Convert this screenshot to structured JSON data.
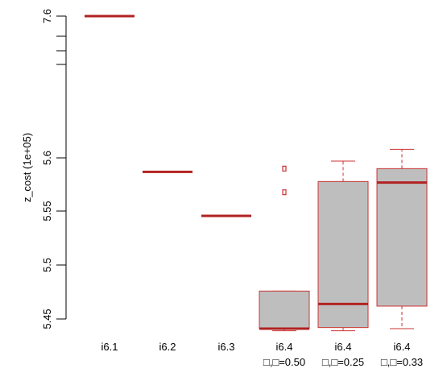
{
  "chart_data": {
    "type": "boxplot",
    "ylabel": "z_cost  (1e+05)",
    "y_ticks": [
      "7.6",
      "5.6",
      "5.55",
      "5.5",
      "5.45"
    ],
    "y_minor_ticks": [
      7.57,
      7.54,
      7.5
    ],
    "categories": [
      {
        "label": "i6.1",
        "sublabel": ""
      },
      {
        "label": "i6.2",
        "sublabel": ""
      },
      {
        "label": "i6.3",
        "sublabel": ""
      },
      {
        "label": "i6.4",
        "sublabel": "□,□=0.50"
      },
      {
        "label": "i6.4",
        "sublabel": "□,□=0.25"
      },
      {
        "label": "i6.4",
        "sublabel": "□,□=0.33"
      }
    ],
    "series": [
      {
        "q1": 7.6,
        "median": 7.6,
        "q3": 7.6,
        "whisker_low": 7.6,
        "whisker_high": 7.6,
        "outliers": []
      },
      {
        "q1": 5.587,
        "median": 5.587,
        "q3": 5.587,
        "whisker_low": 5.587,
        "whisker_high": 5.587,
        "outliers": []
      },
      {
        "q1": 5.546,
        "median": 5.546,
        "q3": 5.546,
        "whisker_low": 5.546,
        "whisker_high": 5.546,
        "outliers": []
      },
      {
        "q1": 5.441,
        "median": 5.441,
        "q3": 5.476,
        "whisker_low": 5.439,
        "whisker_high": 5.476,
        "outliers": [
          5.59,
          5.568
        ]
      },
      {
        "q1": 5.442,
        "median": 5.464,
        "q3": 5.578,
        "whisker_low": 5.439,
        "whisker_high": 5.597,
        "outliers": []
      },
      {
        "q1": 5.462,
        "median": 5.577,
        "q3": 5.59,
        "whisker_low": 5.441,
        "whisker_high": 5.608,
        "outliers": []
      }
    ],
    "colors": {
      "box_fill": "#bebebe",
      "box_border": "#cc3333",
      "median": "#b22222",
      "axis": "#000000"
    }
  }
}
